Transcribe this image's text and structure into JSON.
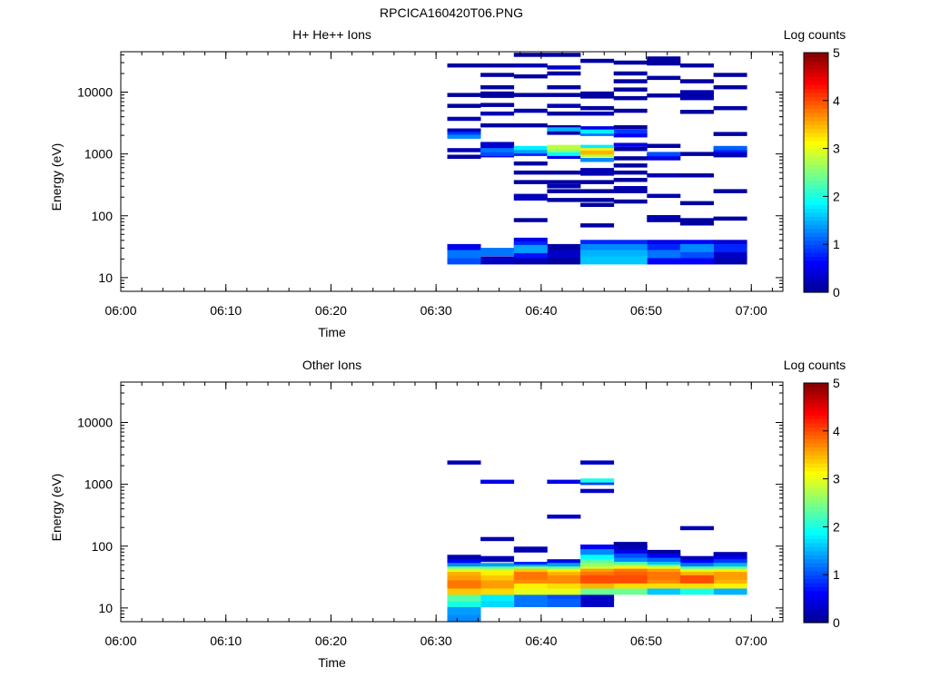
{
  "figure_title": "RPCICA160420T06.PNG",
  "colorbar_ticks": [
    "0",
    "1",
    "2",
    "3",
    "4",
    "5"
  ],
  "chart_data": [
    {
      "type": "heatmap",
      "title": "H+ He++ Ions",
      "xlabel": "Time",
      "ylabel": "Energy (eV)",
      "colorbar_label": "Log counts",
      "colorbar_range": [
        0,
        5
      ],
      "y_scale": "log",
      "ylim": [
        6,
        45000
      ],
      "xlim": [
        "06:00",
        "07:03"
      ],
      "x_ticks": [
        "06:00",
        "06:10",
        "06:20",
        "06:30",
        "06:40",
        "06:50",
        "07:00"
      ],
      "y_ticks": [
        "10",
        "100",
        "1000",
        "10000"
      ],
      "time_bins": [
        "06:32:40",
        "06:35:50",
        "06:39:00",
        "06:42:10",
        "06:45:20",
        "06:48:30",
        "06:51:40",
        "06:54:50",
        "06:58:00",
        "07:01:10"
      ],
      "time_bin_width_min": 3.2,
      "cells": [
        [
          0,
          27000,
          0.1
        ],
        [
          0,
          9000,
          0.1
        ],
        [
          0,
          6000,
          0.1
        ],
        [
          0,
          3700,
          0.2
        ],
        [
          0,
          2400,
          0.3
        ],
        [
          0,
          2100,
          0.9
        ],
        [
          0,
          1900,
          1.3
        ],
        [
          0,
          1150,
          0.2
        ],
        [
          0,
          900,
          0.1
        ],
        [
          0,
          30,
          0.5
        ],
        [
          0,
          24,
          1.2
        ],
        [
          0,
          19,
          1.0
        ],
        [
          1,
          27000,
          0.1
        ],
        [
          1,
          19000,
          0.1
        ],
        [
          1,
          12000,
          0.1
        ],
        [
          1,
          9500,
          0.1
        ],
        [
          1,
          8700,
          0.1
        ],
        [
          1,
          6200,
          0.1
        ],
        [
          1,
          4500,
          0.2
        ],
        [
          1,
          2900,
          0.1
        ],
        [
          1,
          1450,
          0.3
        ],
        [
          1,
          1300,
          0.4
        ],
        [
          1,
          1150,
          1.2
        ],
        [
          1,
          1000,
          1.0
        ],
        [
          1,
          950,
          0.5
        ],
        [
          1,
          26,
          1.2
        ],
        [
          1,
          19,
          0.3
        ],
        [
          2,
          40000,
          0.1
        ],
        [
          2,
          27000,
          0.2
        ],
        [
          2,
          18000,
          0.1
        ],
        [
          2,
          9000,
          0.1
        ],
        [
          2,
          5000,
          0.2
        ],
        [
          2,
          2900,
          0.1
        ],
        [
          2,
          1250,
          1.8
        ],
        [
          2,
          1100,
          1.4
        ],
        [
          2,
          1000,
          0.8
        ],
        [
          2,
          700,
          0.1
        ],
        [
          2,
          500,
          0.1
        ],
        [
          2,
          350,
          0.1
        ],
        [
          2,
          210,
          0.2
        ],
        [
          2,
          190,
          0.3
        ],
        [
          2,
          85,
          0.1
        ],
        [
          2,
          38,
          0.5
        ],
        [
          2,
          33,
          0.8
        ],
        [
          2,
          29,
          1.4
        ],
        [
          2,
          24,
          0.7
        ],
        [
          2,
          19,
          0.2
        ],
        [
          3,
          40000,
          0.1
        ],
        [
          3,
          25000,
          0.3
        ],
        [
          3,
          20000,
          0.1
        ],
        [
          3,
          12000,
          0.1
        ],
        [
          3,
          9000,
          0.1
        ],
        [
          3,
          6000,
          0.2
        ],
        [
          3,
          4500,
          0.1
        ],
        [
          3,
          2700,
          0.1
        ],
        [
          3,
          2500,
          1.5
        ],
        [
          3,
          2200,
          0.2
        ],
        [
          3,
          1300,
          2.8
        ],
        [
          3,
          1150,
          2.6
        ],
        [
          3,
          1000,
          1.9
        ],
        [
          3,
          900,
          0.5
        ],
        [
          3,
          500,
          0.1
        ],
        [
          3,
          350,
          0.1
        ],
        [
          3,
          300,
          0.2
        ],
        [
          3,
          250,
          0.1
        ],
        [
          3,
          180,
          0.1
        ],
        [
          3,
          30,
          0.1
        ],
        [
          3,
          24,
          0.3
        ],
        [
          3,
          19,
          0.1
        ],
        [
          4,
          32000,
          0.1
        ],
        [
          4,
          9500,
          0.1
        ],
        [
          4,
          8500,
          0.1
        ],
        [
          4,
          5500,
          0.1
        ],
        [
          4,
          4500,
          0.2
        ],
        [
          4,
          2600,
          0.5
        ],
        [
          4,
          2300,
          1.8
        ],
        [
          4,
          2100,
          1.2
        ],
        [
          4,
          1300,
          1.8
        ],
        [
          4,
          1150,
          3.2
        ],
        [
          4,
          1050,
          3.5
        ],
        [
          4,
          950,
          2.8
        ],
        [
          4,
          800,
          1.3
        ],
        [
          4,
          550,
          0.2
        ],
        [
          4,
          480,
          0.2
        ],
        [
          4,
          350,
          0.1
        ],
        [
          4,
          250,
          0.1
        ],
        [
          4,
          180,
          0.1
        ],
        [
          4,
          150,
          0.1
        ],
        [
          4,
          70,
          0.1
        ],
        [
          4,
          35,
          0.8
        ],
        [
          4,
          30,
          1.3
        ],
        [
          4,
          24,
          1.5
        ],
        [
          4,
          19,
          1.6
        ],
        [
          5,
          30000,
          0.1
        ],
        [
          5,
          20000,
          0.1
        ],
        [
          5,
          15000,
          0.1
        ],
        [
          5,
          11000,
          0.1
        ],
        [
          5,
          8000,
          0.1
        ],
        [
          5,
          5000,
          0.1
        ],
        [
          5,
          2700,
          0.1
        ],
        [
          5,
          2300,
          0.9
        ],
        [
          5,
          2000,
          0.6
        ],
        [
          5,
          1400,
          0.5
        ],
        [
          5,
          1200,
          0.1
        ],
        [
          5,
          850,
          0.1
        ],
        [
          5,
          650,
          0.1
        ],
        [
          5,
          500,
          0.1
        ],
        [
          5,
          380,
          0.1
        ],
        [
          5,
          280,
          0.2
        ],
        [
          5,
          250,
          0.1
        ],
        [
          5,
          170,
          0.1
        ],
        [
          5,
          35,
          0.8
        ],
        [
          5,
          30,
          1.3
        ],
        [
          5,
          24,
          1.5
        ],
        [
          5,
          19,
          1.6
        ],
        [
          6,
          35000,
          0.1
        ],
        [
          6,
          32000,
          0.1
        ],
        [
          6,
          29000,
          0.1
        ],
        [
          6,
          17000,
          0.1
        ],
        [
          6,
          8800,
          0.1
        ],
        [
          6,
          1350,
          0.1
        ],
        [
          6,
          1000,
          1.0
        ],
        [
          6,
          950,
          0.7
        ],
        [
          6,
          850,
          0.4
        ],
        [
          6,
          450,
          0.2
        ],
        [
          6,
          210,
          0.2
        ],
        [
          6,
          95,
          0.2
        ],
        [
          6,
          85,
          0.1
        ],
        [
          6,
          35,
          0.5
        ],
        [
          6,
          30,
          0.8
        ],
        [
          6,
          24,
          1.2
        ],
        [
          6,
          19,
          0.6
        ],
        [
          7,
          27000,
          0.1
        ],
        [
          7,
          15000,
          0.1
        ],
        [
          7,
          10000,
          0.2
        ],
        [
          7,
          8800,
          0.1
        ],
        [
          7,
          8000,
          0.2
        ],
        [
          7,
          4800,
          0.1
        ],
        [
          7,
          1000,
          0.1
        ],
        [
          7,
          450,
          0.1
        ],
        [
          7,
          160,
          0.1
        ],
        [
          7,
          85,
          0.1
        ],
        [
          7,
          75,
          0.1
        ],
        [
          7,
          35,
          0.6
        ],
        [
          7,
          30,
          1.3
        ],
        [
          7,
          24,
          1.0
        ],
        [
          7,
          19,
          0.6
        ],
        [
          8,
          19000,
          0.1
        ],
        [
          8,
          12000,
          0.1
        ],
        [
          8,
          5500,
          0.1
        ],
        [
          8,
          2100,
          0.1
        ],
        [
          8,
          1250,
          1.1
        ],
        [
          8,
          1150,
          0.8
        ],
        [
          8,
          1050,
          0.3
        ],
        [
          8,
          950,
          0.2
        ],
        [
          8,
          250,
          0.1
        ],
        [
          8,
          90,
          0.1
        ],
        [
          8,
          35,
          0.4
        ],
        [
          8,
          30,
          0.8
        ],
        [
          8,
          24,
          0.3
        ],
        [
          8,
          19,
          0.2
        ]
      ]
    },
    {
      "type": "heatmap",
      "title": "Other Ions",
      "xlabel": "Time",
      "ylabel": "Energy (eV)",
      "colorbar_label": "Log counts",
      "colorbar_range": [
        0,
        5
      ],
      "y_scale": "log",
      "ylim": [
        6,
        45000
      ],
      "xlim": [
        "06:00",
        "07:03"
      ],
      "x_ticks": [
        "06:00",
        "06:10",
        "06:20",
        "06:30",
        "06:40",
        "06:50",
        "07:00"
      ],
      "y_ticks": [
        "10",
        "100",
        "1000",
        "10000"
      ],
      "time_bins": [
        "06:32:40",
        "06:35:50",
        "06:39:00",
        "06:42:10",
        "06:45:20",
        "06:48:30",
        "06:51:40",
        "06:54:50",
        "06:58:00",
        "07:01:10"
      ],
      "time_bin_width_min": 3.2,
      "cells": [
        [
          0,
          2250,
          0.2
        ],
        [
          0,
          65,
          0.2
        ],
        [
          0,
          55,
          0.6
        ],
        [
          0,
          48,
          1.3
        ],
        [
          0,
          42,
          2.4
        ],
        [
          0,
          37,
          3.0
        ],
        [
          0,
          33,
          3.5
        ],
        [
          0,
          29,
          3.6
        ],
        [
          0,
          24,
          3.8
        ],
        [
          0,
          19,
          3.4
        ],
        [
          0,
          15,
          2.3
        ],
        [
          0,
          12,
          2.0
        ],
        [
          0,
          9,
          1.4
        ],
        [
          0,
          7,
          1.3
        ],
        [
          1,
          1100,
          0.5
        ],
        [
          1,
          130,
          0.2
        ],
        [
          1,
          62,
          0.2
        ],
        [
          1,
          48,
          1.4
        ],
        [
          1,
          42,
          2.3
        ],
        [
          1,
          37,
          3.0
        ],
        [
          1,
          33,
          3.2
        ],
        [
          1,
          29,
          3.4
        ],
        [
          1,
          24,
          3.6
        ],
        [
          1,
          19,
          3.3
        ],
        [
          1,
          15,
          1.8
        ],
        [
          1,
          12,
          1.7
        ],
        [
          2,
          88,
          0.2
        ],
        [
          2,
          50,
          0.8
        ],
        [
          2,
          45,
          1.5
        ],
        [
          2,
          42,
          2.5
        ],
        [
          2,
          37,
          3.4
        ],
        [
          2,
          33,
          3.8
        ],
        [
          2,
          29,
          3.7
        ],
        [
          2,
          24,
          3.2
        ],
        [
          2,
          19,
          3.0
        ],
        [
          2,
          15,
          1.2
        ],
        [
          2,
          12,
          1.2
        ],
        [
          3,
          1100,
          0.5
        ],
        [
          3,
          300,
          0.3
        ],
        [
          3,
          55,
          0.5
        ],
        [
          3,
          48,
          1.4
        ],
        [
          3,
          42,
          2.3
        ],
        [
          3,
          37,
          3.2
        ],
        [
          3,
          33,
          3.5
        ],
        [
          3,
          29,
          3.7
        ],
        [
          3,
          24,
          3.3
        ],
        [
          3,
          19,
          3.0
        ],
        [
          3,
          15,
          1.0
        ],
        [
          3,
          12,
          1.1
        ],
        [
          4,
          2250,
          0.3
        ],
        [
          4,
          1150,
          2.0
        ],
        [
          4,
          1050,
          0.9
        ],
        [
          4,
          780,
          0.3
        ],
        [
          4,
          95,
          0.6
        ],
        [
          4,
          80,
          1.3
        ],
        [
          4,
          65,
          1.9
        ],
        [
          4,
          55,
          2.3
        ],
        [
          4,
          48,
          2.6
        ],
        [
          4,
          42,
          2.9
        ],
        [
          4,
          37,
          3.6
        ],
        [
          4,
          33,
          3.8
        ],
        [
          4,
          29,
          4.0
        ],
        [
          4,
          24,
          3.5
        ],
        [
          4,
          19,
          2.4
        ],
        [
          4,
          15,
          0.3
        ],
        [
          4,
          12,
          0.3
        ],
        [
          5,
          105,
          0.1
        ],
        [
          5,
          92,
          0.2
        ],
        [
          5,
          80,
          0.5
        ],
        [
          5,
          68,
          1.0
        ],
        [
          5,
          58,
          1.3
        ],
        [
          5,
          50,
          2.2
        ],
        [
          5,
          45,
          2.8
        ],
        [
          5,
          42,
          3.2
        ],
        [
          5,
          37,
          3.8
        ],
        [
          5,
          33,
          3.9
        ],
        [
          5,
          29,
          4.0
        ],
        [
          5,
          24,
          3.3
        ],
        [
          5,
          19,
          2.4
        ],
        [
          6,
          78,
          0.1
        ],
        [
          6,
          68,
          0.5
        ],
        [
          6,
          58,
          1.1
        ],
        [
          6,
          50,
          1.6
        ],
        [
          6,
          45,
          2.4
        ],
        [
          6,
          42,
          3.0
        ],
        [
          6,
          37,
          3.6
        ],
        [
          6,
          33,
          3.8
        ],
        [
          6,
          29,
          3.7
        ],
        [
          6,
          24,
          3.3
        ],
        [
          6,
          19,
          1.6
        ],
        [
          7,
          195,
          0.2
        ],
        [
          7,
          62,
          0.2
        ],
        [
          7,
          55,
          0.6
        ],
        [
          7,
          48,
          1.2
        ],
        [
          7,
          42,
          2.2
        ],
        [
          7,
          37,
          3.0
        ],
        [
          7,
          33,
          3.5
        ],
        [
          7,
          29,
          4.0
        ],
        [
          7,
          24,
          3.3
        ],
        [
          7,
          19,
          2.0
        ],
        [
          8,
          72,
          0.2
        ],
        [
          8,
          62,
          0.5
        ],
        [
          8,
          55,
          0.9
        ],
        [
          8,
          48,
          1.5
        ],
        [
          8,
          42,
          2.3
        ],
        [
          8,
          37,
          3.2
        ],
        [
          8,
          33,
          3.6
        ],
        [
          8,
          29,
          3.5
        ],
        [
          8,
          24,
          3.2
        ],
        [
          8,
          19,
          1.5
        ]
      ]
    }
  ]
}
